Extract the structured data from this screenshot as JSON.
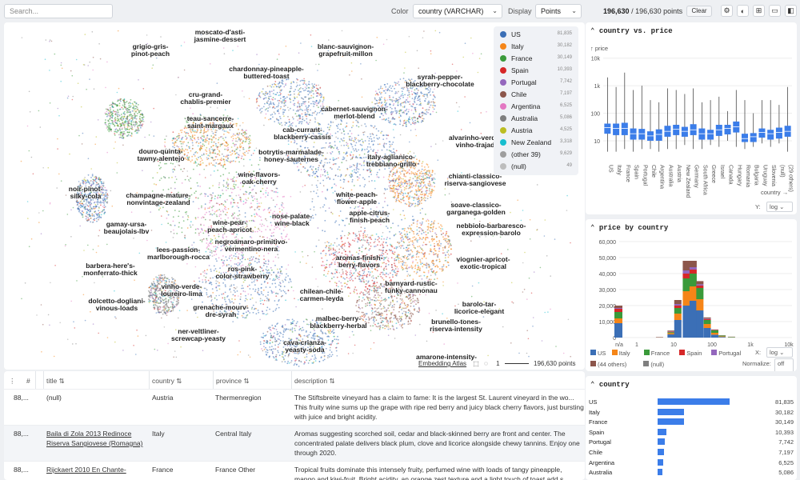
{
  "toolbar": {
    "search_placeholder": "Search...",
    "color_label": "Color",
    "color_value": "country (VARCHAR)",
    "display_label": "Display",
    "display_value": "Points",
    "points_selected": "196,630",
    "points_total": "/ 196,630 points",
    "clear_label": "Clear"
  },
  "icons": [
    "gear-icon",
    "theme-icon",
    "layout-icon",
    "panel-bottom-icon",
    "panel-right-icon"
  ],
  "legend": [
    {
      "name": "US",
      "count": "81,835",
      "color": "#3b6fb6"
    },
    {
      "name": "Italy",
      "count": "30,182",
      "color": "#f58518"
    },
    {
      "name": "France",
      "count": "30,149",
      "color": "#3a9a3a"
    },
    {
      "name": "Spain",
      "count": "10,393",
      "color": "#d62728"
    },
    {
      "name": "Portugal",
      "count": "7,742",
      "color": "#9467bd"
    },
    {
      "name": "Chile",
      "count": "7,197",
      "color": "#8c564b"
    },
    {
      "name": "Argentina",
      "count": "6,525",
      "color": "#e377c2"
    },
    {
      "name": "Australia",
      "count": "5,086",
      "color": "#7f7f7f"
    },
    {
      "name": "Austria",
      "count": "4,525",
      "color": "#bcbd22"
    },
    {
      "name": "New Zealand",
      "count": "3,318",
      "color": "#17becf"
    },
    {
      "name": "(other 39)",
      "count": "9,629",
      "color": "#9e9e9e"
    },
    {
      "name": "(null)",
      "count": "49",
      "color": "#bdbdbd"
    }
  ],
  "clusters": [
    "moscato-d'asti-|jasmine-dessert",
    "grigio-gris-|pinot-peach",
    "blanc-sauvignon-|grapefruit-millon",
    "chardonnay-pineapple-|buttered-toast",
    "syrah-pepper-|blackberry-chocolate",
    "cru-grand-|chablis-premier",
    "cabernet-sauvignon-|merlot-blend",
    "teau-sancerre-|saint-margaux",
    "cab-currant-|blackberry-cassis",
    "alvarinho-verde-|vinho-trajad",
    "douro-quinta-|tawny-alentejo",
    "botrytis-marmalade-|honey-sauternes",
    "italy-aglianico-|trebbiano-grillo",
    "wine-flavors-|oak-cherry",
    "chianti-classico-|riserva-sangiovese",
    "noir-pinot-|silky-cola",
    "champagne-mature-|nonvintage-zealand",
    "white-peach-|flower-apple",
    "soave-classico-|garganega-golden",
    "apple-citrus-|finish-peach",
    "nose-palate-|wine-black",
    "gamay-ursa-|beaujolais-lbv",
    "wine-pear-|peach-apricot",
    "nebbiolo-barbaresco-|expression-barolo",
    "negroamaro-primitivo-|vermentino-nera",
    "lees-passion-|marlborough-rocca",
    "aromas-finish-|berry-flavors",
    "viognier-apricot-|exotic-tropical",
    "barbera-here's-|monferrato-thick",
    "ros-pink-|color-strawberry",
    "barnyard-rustic-|funky-cannonau",
    "vinho-verde-|loureiro-lima",
    "chilean-chile-|carmen-leyda",
    "dolcetto-dogliani-|vinous-loads",
    "barolo-tar-|licorice-elegant",
    "grenache-mourv-|dre-syrah",
    "malbec-berry-|blackberry-herbal",
    "brunello-tones-|riserva-intensity",
    "ner-veltliner-|screwcap-yeasty",
    "cava-crianza-|yeasty-soda",
    "amarone-intensity-"
  ],
  "map_footer": {
    "link": "Embedding Atlas",
    "scale": "1",
    "points": "196,630 points"
  },
  "table": {
    "columns": [
      "#",
      "title",
      "country",
      "province",
      "description"
    ],
    "rows": [
      {
        "id": "88,...",
        "title": "(null)",
        "title_link": false,
        "country": "Austria",
        "province": "Thermenregion",
        "description": "The Stiftsbreite vineyard has a claim to fame: It is the largest St. Laurent vineyard in the wo... This fruity wine sums up the grape with ripe red berry and juicy black cherry flavors, just bursting with juice and bright acidity."
      },
      {
        "id": "88,...",
        "title": "Baila di Zola 2013 Redinoce Riserva Sangiovese (Romagna)",
        "title_link": true,
        "country": "Italy",
        "province": "Central Italy",
        "description": "Aromas suggesting scorched soil, cedar and black-skinned berry are front and center. The concentrated palate delivers black plum, clove and licorice alongside chewy tannins. Enjoy one through 2020."
      },
      {
        "id": "88,...",
        "title": "Rijckaert 2010 En Chante-",
        "title_link": true,
        "country": "France",
        "province": "France Other",
        "description": "Tropical fruits dominate this intensely fruity, perfumed wine with loads of tangy pineapple, mango and kiwi-fruit. Bright acidity, an orange zest texture and a light touch of toast add s..."
      }
    ]
  },
  "boxplot": {
    "title": "country vs. price",
    "y_label": "price",
    "x_label": "country",
    "y_scale_label": "Y:",
    "y_scale": "log",
    "y_ticks": [
      "10k",
      "1k",
      "100",
      "10"
    ],
    "categories": [
      "US",
      "Italy",
      "France",
      "Spain",
      "Portugal",
      "Chile",
      "Argentina",
      "Australia",
      "Austria",
      "New Zealand",
      "Germany",
      "South Africa",
      "Greece",
      "Israel",
      "Canada",
      "Hungary",
      "Romania",
      "Bulgaria",
      "Uruguay",
      "Slovenia",
      "(null)",
      "(29 others)"
    ],
    "medians": [
      30,
      28,
      28,
      18,
      18,
      15,
      17,
      22,
      26,
      22,
      25,
      18,
      18,
      25,
      28,
      32,
      12,
      14,
      20,
      18,
      20,
      22
    ],
    "q1": [
      18,
      16,
      16,
      11,
      11,
      10,
      10,
      14,
      16,
      14,
      16,
      11,
      11,
      15,
      17,
      20,
      9,
      9,
      13,
      11,
      12,
      14
    ],
    "q3": [
      42,
      42,
      45,
      28,
      27,
      22,
      26,
      35,
      38,
      32,
      40,
      28,
      25,
      38,
      38,
      50,
      18,
      19,
      28,
      25,
      30,
      35
    ],
    "whisker_low": [
      4,
      4,
      5,
      4,
      5,
      5,
      4,
      5,
      5,
      7,
      5,
      5,
      7,
      6,
      10,
      6,
      5,
      6,
      8,
      6,
      8,
      4
    ],
    "whisker_high": [
      2000,
      900,
      3000,
      700,
      1000,
      300,
      250,
      800,
      700,
      500,
      800,
      250,
      300,
      400,
      120,
      700,
      300,
      100,
      300,
      300,
      200,
      900
    ]
  },
  "histogram": {
    "title": "price by country",
    "y_ticks": [
      "60,000",
      "50,000",
      "40,000",
      "30,000",
      "20,000",
      "10,000",
      "0"
    ],
    "x_ticks": [
      "n/a",
      "1",
      "10",
      "100",
      "1k",
      "10k"
    ],
    "x_scale_label": "X:",
    "x_scale": "log",
    "normalize_label": "Normalize:",
    "normalize_value": "off",
    "legend": [
      {
        "name": "US",
        "color": "#3b6fb6"
      },
      {
        "name": "Italy",
        "color": "#f58518"
      },
      {
        "name": "France",
        "color": "#3a9a3a"
      },
      {
        "name": "Spain",
        "color": "#d62728"
      },
      {
        "name": "Portugal",
        "color": "#9467bd"
      },
      {
        "name": "(44 others)",
        "color": "#8c564b"
      },
      {
        "name": "(null)",
        "color": "#7f7f7f"
      }
    ],
    "bins": [
      {
        "x": "n/a",
        "values": [
          9000,
          3000,
          4000,
          2000,
          500,
          1500,
          0
        ]
      },
      {
        "x": "4",
        "values": [
          0,
          0,
          0,
          0,
          0,
          300,
          0
        ]
      },
      {
        "x": "8",
        "values": [
          2000,
          800,
          600,
          300,
          200,
          500,
          0
        ]
      },
      {
        "x": "12",
        "values": [
          11000,
          4000,
          3500,
          1500,
          1000,
          2500,
          0
        ]
      },
      {
        "x": "20",
        "values": [
          20000,
          9000,
          8000,
          3000,
          2000,
          6000,
          0
        ]
      },
      {
        "x": "30",
        "values": [
          23000,
          9000,
          8000,
          2500,
          1500,
          4000,
          0
        ]
      },
      {
        "x": "45",
        "values": [
          17000,
          7000,
          7000,
          1500,
          800,
          2000,
          0
        ]
      },
      {
        "x": "70",
        "values": [
          6000,
          2500,
          2500,
          600,
          300,
          700,
          0
        ]
      },
      {
        "x": "110",
        "values": [
          1800,
          1200,
          1500,
          200,
          100,
          300,
          0
        ]
      },
      {
        "x": "170",
        "values": [
          400,
          400,
          500,
          50,
          20,
          100,
          0
        ]
      },
      {
        "x": "300",
        "values": [
          150,
          150,
          200,
          20,
          10,
          50,
          0
        ]
      }
    ]
  },
  "country_counts": {
    "title": "country",
    "rows": [
      {
        "name": "US",
        "value": 81835,
        "label": "81,835"
      },
      {
        "name": "Italy",
        "value": 30182,
        "label": "30,182"
      },
      {
        "name": "France",
        "value": 30149,
        "label": "30,149"
      },
      {
        "name": "Spain",
        "value": 10393,
        "label": "10,393"
      },
      {
        "name": "Portugal",
        "value": 7742,
        "label": "7,742"
      },
      {
        "name": "Chile",
        "value": 7197,
        "label": "7,197"
      },
      {
        "name": "Argentina",
        "value": 6525,
        "label": "6,525"
      },
      {
        "name": "Australia",
        "value": 5086,
        "label": "5,086"
      }
    ]
  }
}
